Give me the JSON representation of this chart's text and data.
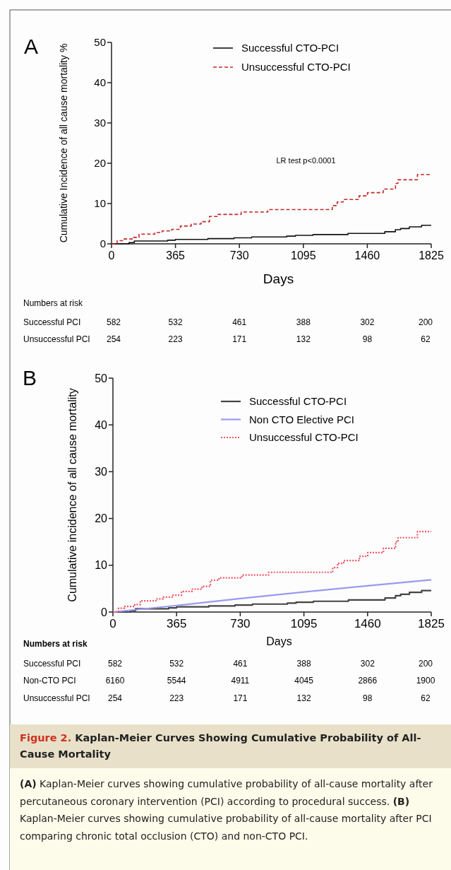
{
  "chart_data": [
    {
      "type": "step",
      "title": "A",
      "xlabel": "Days",
      "ylabel": "Cumulative Incidence of all cause mortality %",
      "xlim": [
        0,
        1825
      ],
      "xticks": [
        0,
        365,
        730,
        1095,
        1460,
        1825
      ],
      "ylim": [
        0,
        50
      ],
      "yticks": [
        0,
        10,
        20,
        30,
        40,
        50
      ],
      "legend": "top right",
      "series": [
        {
          "name": "Successful CTO-PCI",
          "color": "#111111",
          "line_style": "solid",
          "x": [
            0,
            100,
            130,
            320,
            365,
            550,
            700,
            800,
            1000,
            1050,
            1150,
            1350,
            1560,
            1620,
            1650,
            1700,
            1770,
            1825
          ],
          "values": [
            0,
            0.3,
            0.7,
            0.9,
            1.1,
            1.3,
            1.5,
            1.7,
            1.9,
            2.1,
            2.3,
            2.6,
            3.0,
            3.5,
            3.8,
            4.2,
            4.6,
            4.6
          ]
        },
        {
          "name": "Unsuccessful CTO-PCI",
          "color": "#c0282a",
          "line_style": "dashed",
          "x": [
            0,
            32,
            67,
            125,
            157,
            247,
            289,
            344,
            393,
            455,
            511,
            559,
            608,
            740,
            892,
            1260,
            1288,
            1323,
            1413,
            1461,
            1551,
            1621,
            1635,
            1746,
            1825
          ],
          "values": [
            0,
            0.8,
            1.2,
            1.6,
            2.4,
            2.8,
            3.2,
            3.6,
            4.4,
            4.9,
            5.5,
            6.8,
            7.3,
            7.9,
            8.5,
            9.5,
            10.4,
            11.0,
            11.9,
            12.7,
            13.6,
            15.0,
            15.9,
            17.2,
            17.2
          ]
        }
      ],
      "annotations": [
        "LR test p<0.0001",
        "Numbers at risk",
        "Successful PCI",
        "582",
        "532",
        "461",
        "388",
        "302",
        "200",
        "Unsuccessful PCI",
        "254",
        "223",
        "171",
        "132",
        "98",
        "62"
      ]
    },
    {
      "type": "step",
      "title": "B",
      "xlabel": "Days",
      "ylabel": "Cumulative incidence of all cause mortality",
      "xlim": [
        0,
        1825
      ],
      "xticks": [
        0,
        365,
        730,
        1095,
        1460,
        1825
      ],
      "ylim": [
        0,
        50
      ],
      "yticks": [
        0,
        10,
        20,
        30,
        40,
        50
      ],
      "legend": "top right",
      "series": [
        {
          "name": "Successful CTO-PCI",
          "color": "#444444",
          "line_style": "solid",
          "x": [
            0,
            100,
            130,
            320,
            365,
            550,
            700,
            800,
            1000,
            1050,
            1150,
            1350,
            1560,
            1620,
            1650,
            1700,
            1770,
            1825
          ],
          "values": [
            0,
            0.3,
            0.7,
            0.9,
            1.1,
            1.3,
            1.5,
            1.7,
            1.9,
            2.1,
            2.3,
            2.6,
            3.0,
            3.5,
            3.8,
            4.2,
            4.6,
            4.6
          ]
        },
        {
          "name": "Non CTO Elective PCI",
          "color": "#9a9af0",
          "line_style": "solid",
          "type": "line",
          "x": [
            0,
            365,
            730,
            1095,
            1460,
            1825
          ],
          "values": [
            0,
            1.4,
            2.9,
            4.3,
            5.6,
            6.9
          ]
        },
        {
          "name": "Unsuccessful CTO-PCI",
          "color": "#ee5566",
          "line_style": "dotted",
          "x": [
            0,
            32,
            67,
            125,
            157,
            247,
            289,
            344,
            393,
            455,
            511,
            559,
            608,
            740,
            892,
            1260,
            1288,
            1323,
            1413,
            1461,
            1551,
            1621,
            1635,
            1746,
            1825
          ],
          "values": [
            0,
            0.8,
            1.2,
            1.6,
            2.4,
            2.8,
            3.2,
            3.6,
            4.4,
            4.9,
            5.5,
            6.8,
            7.3,
            7.9,
            8.5,
            9.5,
            10.4,
            11.0,
            11.9,
            12.7,
            13.6,
            15.0,
            15.9,
            17.2,
            17.2
          ]
        }
      ],
      "annotations": [
        "Numbers at risk",
        "Successful PCI",
        "582",
        "532",
        "461",
        "388",
        "302",
        "200",
        "Non-CTO PCI",
        "6160",
        "5544",
        "4911",
        "4045",
        "2866",
        "1900",
        "Unsuccessful PCI",
        "254",
        "223",
        "171",
        "132",
        "98",
        "62",
        "Figure 2.",
        "Kaplan-Meier Curves Showing Cumulative Probability of All-Cause Mortality",
        "(A)",
        " Kaplan-Meier curves showing cumulative probability of all-cause mortality after percutaneous coronary intervention (PCI) according to procedural success. ",
        "(B)",
        " Kaplan-Meier curves showing cumulative probability of all-cause mortality after PCI comparing chronic total occlusion (CTO) and non-CTO PCI."
      ]
    }
  ]
}
